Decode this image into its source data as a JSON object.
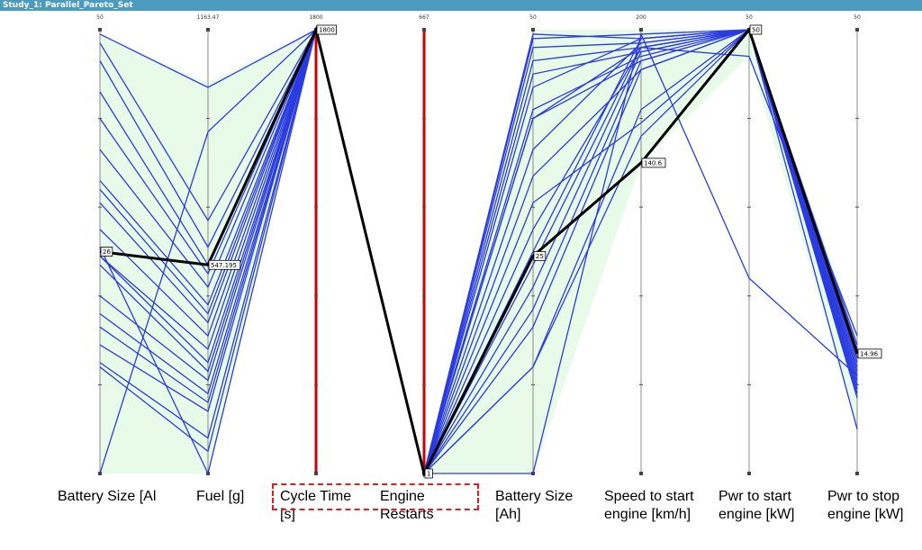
{
  "window": {
    "title": "Study_1: Parallel_Pareto_Set"
  },
  "chart_data": {
    "type": "parallel_coordinates",
    "axes": [
      {
        "label": "Battery Size [Al",
        "max": "50"
      },
      {
        "label": "Fuel [g]",
        "max": "1163.47"
      },
      {
        "label": "Cycle Time [s]",
        "max": "1800"
      },
      {
        "label": "Engine Restarts",
        "max": "667"
      },
      {
        "label": "Battery Size [Ah]",
        "max": "50"
      },
      {
        "label": "Speed to start engine [km/h]",
        "max": "200"
      },
      {
        "label": "Pwr to start engine [kW]",
        "max": "50"
      },
      {
        "label": "Pwr to stop engine [kW]",
        "max": "50"
      }
    ],
    "selected_values": [
      "26",
      "547.195",
      "1800",
      "1",
      "25",
      "140.6",
      "50",
      "14.96"
    ],
    "constrained_axes": [
      2,
      3
    ],
    "colors": {
      "series": "#2a3be0",
      "selected": "#000000",
      "constrained_axis": "#cc0000",
      "range_fill": "#e8fbe8",
      "title_bar": "#4a9bbf",
      "highlight_box": "#e02020"
    },
    "series": [
      [
        0.99,
        0.87,
        1,
        0,
        0.99,
        0.98,
        1,
        0.29
      ],
      [
        0.97,
        0.57,
        1,
        0,
        0.98,
        0.99,
        1,
        0.26
      ],
      [
        0.93,
        0.51,
        1,
        0,
        0.96,
        0.97,
        1,
        0.23
      ],
      [
        0.86,
        0.47,
        1,
        0,
        0.93,
        0.96,
        1,
        0.21
      ],
      [
        0.8,
        0.45,
        1,
        0,
        0.9,
        0.95,
        1,
        0.27
      ],
      [
        0.73,
        0.42,
        1,
        0,
        0.87,
        0.98,
        1,
        0.25
      ],
      [
        0.66,
        0.38,
        1,
        0,
        0.82,
        0.94,
        1,
        0.19
      ],
      [
        0.64,
        0.36,
        1,
        0,
        0.8,
        0.93,
        1,
        0.22
      ],
      [
        0.61,
        0.34,
        1,
        0,
        0.73,
        0.97,
        1,
        0.18
      ],
      [
        0.55,
        0.31,
        1,
        0,
        0.67,
        0.91,
        1,
        0.2
      ],
      [
        0.49,
        0.28,
        1,
        0,
        0.61,
        0.79,
        1,
        0.24
      ],
      [
        0.49,
        0.25,
        1,
        0,
        0.55,
        0.96,
        1,
        0.17
      ],
      [
        0.47,
        0.23,
        1,
        0,
        0.5,
        0.98,
        1,
        0.28
      ],
      [
        0.4,
        0.21,
        1,
        0,
        0.47,
        0.96,
        1,
        0.19
      ],
      [
        0.36,
        0.18,
        1,
        0,
        0.42,
        0.95,
        1,
        0.23
      ],
      [
        0.33,
        0.16,
        1,
        0,
        0.37,
        0.93,
        1,
        0.26
      ],
      [
        0.29,
        0.14,
        1,
        0,
        0.33,
        0.91,
        1,
        0.21
      ],
      [
        0.25,
        0.08,
        1,
        0,
        0.24,
        0.82,
        1,
        0.18
      ],
      [
        0.24,
        0.05,
        1,
        0,
        0.24,
        0.76,
        1,
        0.1
      ],
      [
        0.0,
        0.77,
        1,
        0,
        0.8,
        0.96,
        0.94,
        0.31
      ],
      [
        0.51,
        0.0,
        1,
        0,
        0.0,
        0.99,
        0.44,
        0.22
      ]
    ],
    "selected_line": [
      0.5,
      0.47,
      1,
      0,
      0.49,
      0.7,
      1,
      0.27
    ],
    "range_polygon": {
      "upper": [
        0.99,
        0.88,
        1,
        0,
        1,
        1,
        1,
        0.31
      ],
      "lower": [
        0.0,
        0.0,
        1,
        0,
        0.0,
        0.7,
        0.94,
        0.1
      ]
    },
    "grid": false,
    "legend": "none"
  }
}
